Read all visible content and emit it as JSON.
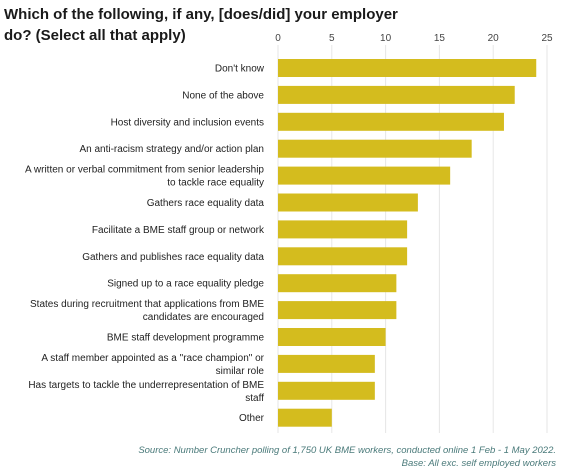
{
  "chart_data": {
    "type": "bar",
    "orientation": "horizontal",
    "title": "Which of the following, if any, [does/did] your employer do? (Select all that apply)",
    "categories": [
      "Don't know",
      "None of the above",
      "Host diversity and inclusion events",
      "An anti-racism strategy and/or action plan",
      "A written or verbal commitment from senior leadership to tackle race equality",
      "Gathers race equality data",
      "Facilitate a BME staff group or network",
      "Gathers and publishes race equality data",
      "Signed up to a race equality pledge",
      "States during recruitment that applications from BME candidates are encouraged",
      "BME staff development programme",
      "A staff member appointed as a \"race champion\" or similar role",
      "Has targets to tackle the underrepresentation of BME staff",
      "Other"
    ],
    "category_lines": [
      [
        "Don't know"
      ],
      [
        "None of the above"
      ],
      [
        "Host diversity and inclusion events"
      ],
      [
        "An anti-racism strategy and/or action plan"
      ],
      [
        "A written or verbal commitment from senior leadership",
        "to tackle race equality"
      ],
      [
        "Gathers race equality data"
      ],
      [
        "Facilitate a BME staff group or network"
      ],
      [
        "Gathers and publishes race equality data"
      ],
      [
        "Signed up to a race equality pledge"
      ],
      [
        "States during recruitment that applications from BME",
        "candidates are encouraged"
      ],
      [
        "BME staff development programme"
      ],
      [
        "A staff member appointed as a \"race champion\" or",
        "similar role"
      ],
      [
        "Has targets to tackle the underrepresentation of BME",
        "staff"
      ],
      [
        "Other"
      ]
    ],
    "values": [
      24,
      22,
      21,
      18,
      16,
      13,
      12,
      12,
      11,
      11,
      10,
      9,
      9,
      5
    ],
    "xlim": [
      0,
      25
    ],
    "xticks": [
      0,
      5,
      10,
      15,
      20,
      25
    ],
    "grid": true,
    "axis_position": "top",
    "bar_color": "#d4bc1e",
    "grid_color": "#e6e6e6"
  },
  "source": "Source: Number Cruncher polling of 1,750 UK BME workers, conducted online 1 Feb -     1 May 2022.",
  "base": "Base: All exc. self employed workers"
}
